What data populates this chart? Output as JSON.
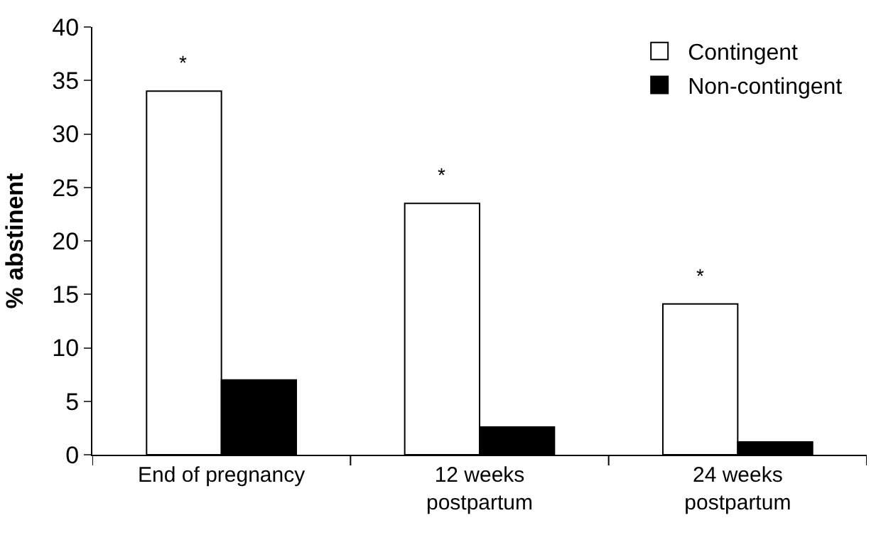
{
  "chart_data": {
    "type": "bar",
    "ylabel": "% abstinent",
    "categories": [
      "End of pregnancy",
      "12 weeks\npostpartum",
      "24 weeks\npostpartum"
    ],
    "series": [
      {
        "name": "Contingent",
        "color": "#ffffff",
        "values": [
          34.0,
          23.5,
          14.1
        ]
      },
      {
        "name": "Non-contingent",
        "color": "#000000",
        "values": [
          7.0,
          2.6,
          1.2
        ]
      }
    ],
    "ylim": [
      0,
      40
    ],
    "yticks": [
      0,
      5,
      10,
      15,
      20,
      25,
      30,
      35,
      40
    ],
    "legend": "top right",
    "annotations": [
      {
        "text": "*",
        "x": "End of pregnancy",
        "y": 34.0
      },
      {
        "text": "*",
        "x": "12 weeks\npostpartum",
        "y": 23.5
      },
      {
        "text": "*",
        "x": "24 weeks\npostpartum",
        "y": 14.1
      }
    ]
  }
}
